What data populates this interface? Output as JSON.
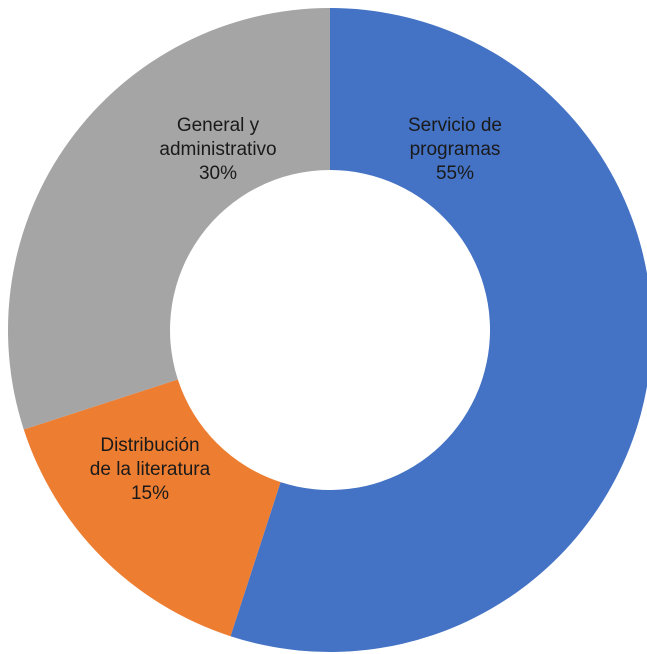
{
  "chart_data": {
    "type": "donut",
    "categories": [
      "Servicio de programas",
      "Distribución de la literatura",
      "General y administrativo"
    ],
    "values": [
      55,
      15,
      30
    ],
    "value_labels": [
      "55%",
      "15%",
      "30%"
    ],
    "colors": [
      "#4472c4",
      "#ed7d31",
      "#a5a5a5"
    ]
  }
}
